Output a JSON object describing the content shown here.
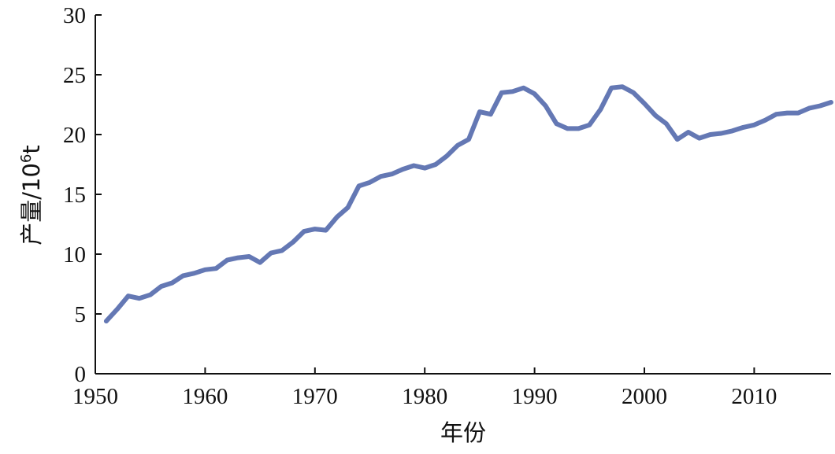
{
  "chart_data": {
    "type": "line",
    "xlabel": "年份",
    "ylabel_main": "产量/10",
    "ylabel_sup": "6",
    "ylabel_unit": "t",
    "xlim": [
      1950,
      2017
    ],
    "ylim": [
      0,
      30
    ],
    "xticks": [
      1950,
      1960,
      1970,
      1980,
      1990,
      2000,
      2010
    ],
    "yticks": [
      0,
      5,
      10,
      15,
      20,
      25,
      30
    ],
    "grid": false,
    "line_color": "#6478b4",
    "series": [
      {
        "x": [
          1951,
          1952,
          1953,
          1954,
          1955,
          1956,
          1957,
          1958,
          1959,
          1960,
          1961,
          1962,
          1963,
          1964,
          1965,
          1966,
          1967,
          1968,
          1969,
          1970,
          1971,
          1972,
          1973,
          1974,
          1975,
          1976,
          1977,
          1978,
          1979,
          1980,
          1981,
          1982,
          1983,
          1984,
          1985,
          1986,
          1987,
          1988,
          1989,
          1990,
          1991,
          1992,
          1993,
          1994,
          1995,
          1996,
          1997,
          1998,
          1999,
          2000,
          2001,
          2002,
          2003,
          2004,
          2005,
          2006,
          2007,
          2008,
          2009,
          2010,
          2011,
          2012,
          2013,
          2014,
          2015,
          2016,
          2017
        ],
        "y": [
          4.4,
          5.4,
          6.5,
          6.3,
          6.6,
          7.3,
          7.6,
          8.2,
          8.4,
          8.7,
          8.8,
          9.5,
          9.7,
          9.8,
          9.3,
          10.1,
          10.3,
          11.0,
          11.9,
          12.1,
          12.0,
          13.1,
          13.9,
          15.7,
          16.0,
          16.5,
          16.7,
          17.1,
          17.4,
          17.2,
          17.5,
          18.2,
          19.1,
          19.6,
          21.9,
          21.7,
          23.5,
          23.6,
          23.9,
          23.4,
          22.4,
          20.9,
          20.5,
          20.5,
          20.8,
          22.1,
          23.9,
          24.0,
          23.5,
          22.6,
          21.6,
          20.9,
          19.6,
          20.2,
          19.7,
          20.0,
          20.1,
          20.3,
          20.6,
          20.8,
          21.2,
          21.7,
          21.8,
          21.8,
          22.2,
          22.4,
          22.7
        ]
      }
    ]
  }
}
